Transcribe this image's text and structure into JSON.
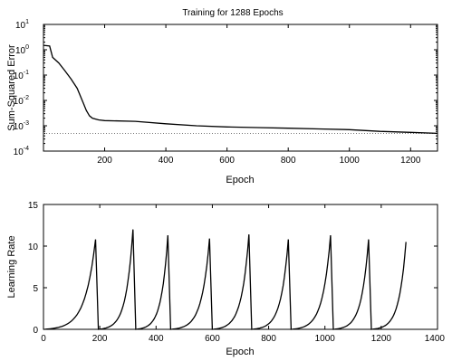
{
  "chart_data": [
    {
      "type": "line",
      "title": "Training for 1288 Epochs",
      "xlabel": "Epoch",
      "ylabel": "Sum-Squared Error",
      "xscale": "linear",
      "yscale": "log",
      "xlim": [
        0,
        1288
      ],
      "ylim": [
        0.0001,
        10
      ],
      "x_ticks": [
        200,
        400,
        600,
        800,
        1000,
        1200
      ],
      "y_ticks": [
        {
          "value": 0.0001,
          "base": "10",
          "exp": "-4"
        },
        {
          "value": 0.001,
          "base": "10",
          "exp": "-3"
        },
        {
          "value": 0.01,
          "base": "10",
          "exp": "-2"
        },
        {
          "value": 0.1,
          "base": "10",
          "exp": "-1"
        },
        {
          "value": 1,
          "base": "10",
          "exp": "0"
        },
        {
          "value": 10,
          "base": "10",
          "exp": "1"
        }
      ],
      "goal_line": 0.0005,
      "series": [
        {
          "x": [
            0,
            20,
            30,
            50,
            70,
            90,
            110,
            130,
            140,
            150,
            160,
            180,
            200,
            300,
            400,
            500,
            600,
            700,
            800,
            900,
            1000,
            1100,
            1200,
            1288
          ],
          "y": [
            1.5,
            1.4,
            0.5,
            0.3,
            0.15,
            0.07,
            0.03,
            0.008,
            0.004,
            0.0025,
            0.002,
            0.0017,
            0.0016,
            0.0015,
            0.0012,
            0.001,
            0.0009,
            0.00085,
            0.0008,
            0.00075,
            0.0007,
            0.0006,
            0.00055,
            0.0005
          ]
        }
      ]
    },
    {
      "type": "line",
      "title": "",
      "xlabel": "Epoch",
      "ylabel": "Learning Rate",
      "xscale": "linear",
      "yscale": "linear",
      "xlim": [
        0,
        1400
      ],
      "ylim": [
        0,
        15
      ],
      "x_ticks": [
        0,
        200,
        400,
        600,
        800,
        1000,
        1200,
        1400
      ],
      "y_ticks": [
        0,
        5,
        10,
        15
      ],
      "cycles": [
        {
          "start": 0,
          "peak_x": 185,
          "peak_y": 10.8
        },
        {
          "start": 195,
          "peak_x": 318,
          "peak_y": 12.0
        },
        {
          "start": 328,
          "peak_x": 442,
          "peak_y": 11.3
        },
        {
          "start": 452,
          "peak_x": 590,
          "peak_y": 10.9
        },
        {
          "start": 600,
          "peak_x": 730,
          "peak_y": 11.4
        },
        {
          "start": 740,
          "peak_x": 870,
          "peak_y": 10.8
        },
        {
          "start": 880,
          "peak_x": 1020,
          "peak_y": 11.3
        },
        {
          "start": 1030,
          "peak_x": 1155,
          "peak_y": 10.8
        },
        {
          "start": 1165,
          "peak_x": 1288,
          "peak_y": 10.5
        }
      ]
    }
  ]
}
